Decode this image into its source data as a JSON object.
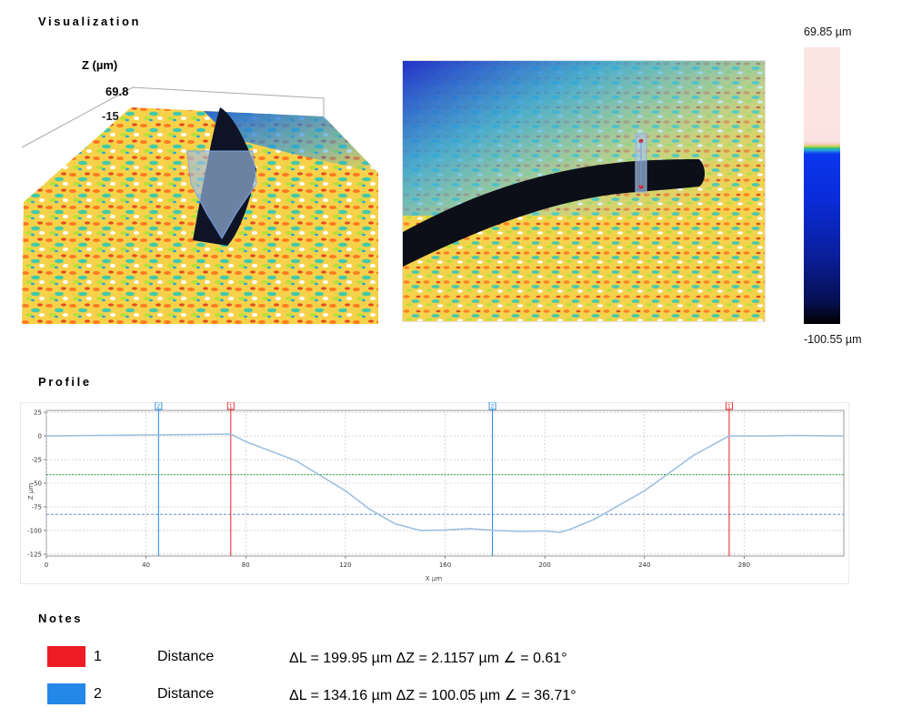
{
  "sections": {
    "visualization": "Visualization",
    "profile": "Profile",
    "notes": "Notes"
  },
  "view3d": {
    "z_axis_label": "Z (µm)",
    "z_max_label": "69.8",
    "z_min_label": "-15"
  },
  "colorbar": {
    "max_label": "69.85 µm",
    "min_label": "-100.55 µm"
  },
  "colors": {
    "marker_1": "#ee1c25",
    "marker_2": "#2388e8",
    "profile_line": "#9ec0e0",
    "grid": "#bcbcbc",
    "green_reference": "#2e9a3c",
    "blue_reference": "#5b8fd0"
  },
  "notes": [
    {
      "id": "1",
      "type": "Distance",
      "measurement": "ΔL = 199.95 µm ΔZ = 2.1157 µm ∠ = 0.61°",
      "color": "#ee1c25"
    },
    {
      "id": "2",
      "type": "Distance",
      "measurement": "ΔL = 134.16 µm ΔZ = 100.05 µm ∠ = 36.71°",
      "color": "#2388e8"
    }
  ],
  "chart_data": {
    "type": "line",
    "xlabel": "X µm",
    "ylabel": "Z µm",
    "xlim": [
      0,
      320
    ],
    "ylim": [
      -127,
      27
    ],
    "x_ticks": [
      0,
      40,
      80,
      120,
      160,
      200,
      240,
      280
    ],
    "y_ticks": [
      25,
      0,
      -25,
      -50,
      -75,
      -100,
      -125
    ],
    "grid": true,
    "x": [
      0,
      20,
      40,
      60,
      74,
      80,
      90,
      100,
      110,
      120,
      130,
      140,
      150,
      160,
      170,
      180,
      190,
      200,
      206,
      210,
      220,
      230,
      240,
      250,
      260,
      274,
      290,
      300,
      320
    ],
    "series": [
      {
        "values": [
          0,
          0.5,
          1,
          1.5,
          2,
          -6,
          -16,
          -26,
          -42,
          -58,
          -78,
          -93,
          -100,
          -99.5,
          -98,
          -100,
          -101,
          -100.5,
          -102,
          -99,
          -88,
          -73,
          -58,
          -39,
          -20,
          0,
          0,
          0.5,
          0
        ]
      }
    ],
    "reference_lines": [
      {
        "y": -41
      },
      {
        "y": -83
      }
    ],
    "markers": [
      {
        "label": "2",
        "x": 45
      },
      {
        "label": "1",
        "x": 74
      },
      {
        "label": "2",
        "x": 179
      },
      {
        "label": "1",
        "x": 274
      }
    ]
  }
}
